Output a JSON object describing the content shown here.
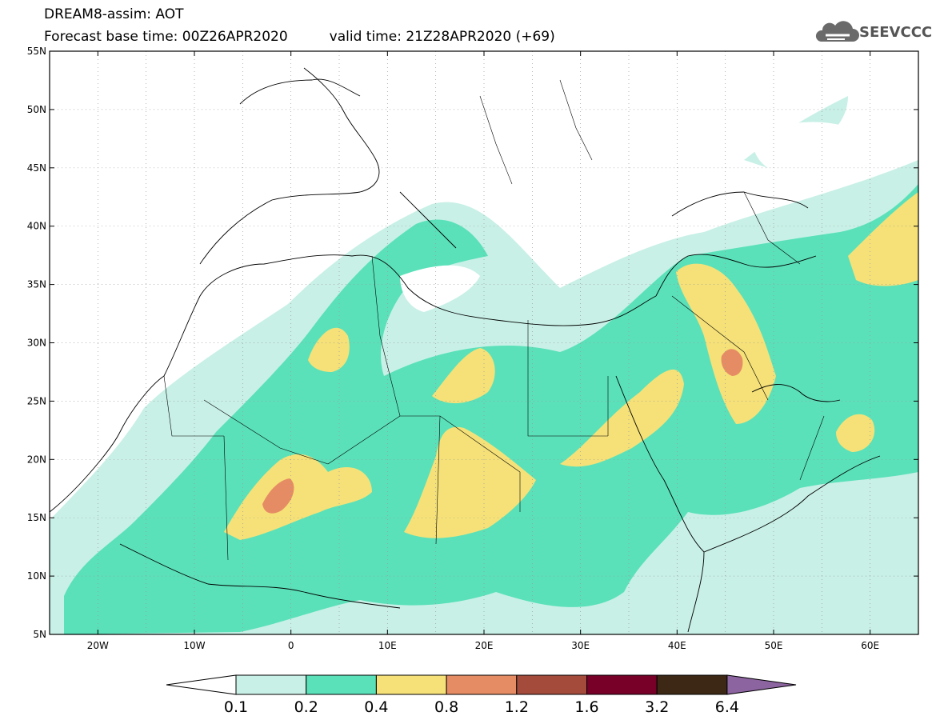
{
  "header": {
    "title": "DREAM8-assim: AOT",
    "base_time": "Forecast base time: 00Z26APR2020",
    "valid_time": "valid time: 21Z28APR2020 (+69)",
    "logo_text": "SEEVCCC"
  },
  "map": {
    "lat_labels": [
      "55N",
      "50N",
      "45N",
      "40N",
      "35N",
      "30N",
      "25N",
      "20N",
      "15N",
      "10N",
      "5N"
    ],
    "lon_labels": [
      "20W",
      "10W",
      "0",
      "10E",
      "20E",
      "30E",
      "40E",
      "50E",
      "60E"
    ],
    "lat_range": [
      5,
      55
    ],
    "lon_range": [
      -25,
      65
    ],
    "grid": true
  },
  "colorbar": {
    "labels": [
      "0.1",
      "0.2",
      "0.4",
      "0.8",
      "1.2",
      "1.6",
      "3.2",
      "6.4"
    ],
    "colors": [
      "#ffffff",
      "#c8f0e6",
      "#5ae1b9",
      "#f5e178",
      "#e68c64",
      "#a54b3c",
      "#780028",
      "#3c2814",
      "#8c64a0"
    ]
  }
}
